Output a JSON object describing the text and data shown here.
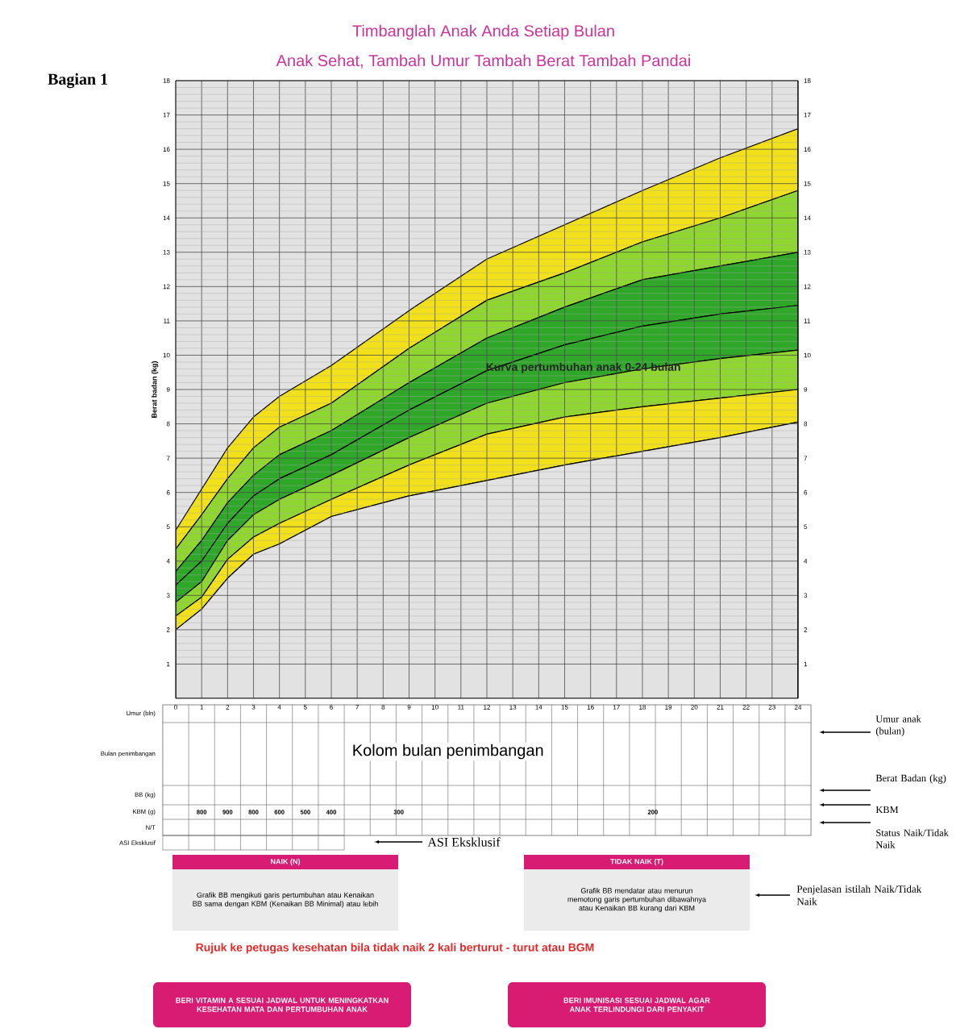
{
  "chart_data": {
    "type": "area",
    "title": "Timbanglah Anak Anda Setiap Bulan",
    "subtitle": "Anak Sehat, Tambah Umur  Tambah Berat  Tambah Pandai",
    "xlabel": "Umur (bln)",
    "ylabel": "Berat badan (kg)",
    "x": [
      0,
      1,
      2,
      3,
      4,
      6,
      9,
      12,
      15,
      18,
      21,
      24
    ],
    "stacked": true,
    "series": [
      {
        "color": "#e2e2e2",
        "values": [
          2.0,
          2.6,
          3.5,
          4.2,
          4.5,
          5.3,
          5.9,
          6.35,
          6.8,
          7.2,
          7.6,
          8.05
        ]
      },
      {
        "color": "#f2e01a",
        "values": [
          0.4,
          0.35,
          0.55,
          0.5,
          0.6,
          0.5,
          0.9,
          1.35,
          1.4,
          1.3,
          1.15,
          0.95
        ]
      },
      {
        "color": "#8fd631",
        "values": [
          0.4,
          0.45,
          0.55,
          0.65,
          0.7,
          0.7,
          0.8,
          0.9,
          1.0,
          1.1,
          1.15,
          1.15
        ]
      },
      {
        "color": "#2fa82a",
        "values": [
          0.5,
          0.6,
          0.5,
          0.55,
          0.6,
          0.6,
          0.8,
          0.95,
          1.1,
          1.25,
          1.3,
          1.3
        ]
      },
      {
        "color": "#2fa82a",
        "values": [
          0.4,
          0.6,
          0.6,
          0.6,
          0.7,
          0.7,
          0.8,
          0.95,
          1.1,
          1.35,
          1.4,
          1.55
        ]
      },
      {
        "color": "#8fd631",
        "values": [
          0.65,
          0.75,
          0.7,
          0.8,
          0.8,
          0.8,
          1.0,
          1.1,
          1.0,
          1.1,
          1.4,
          1.8
        ]
      },
      {
        "color": "#f2e01a",
        "values": [
          0.55,
          0.75,
          0.9,
          0.9,
          0.9,
          1.1,
          1.1,
          1.2,
          1.4,
          1.5,
          1.75,
          1.8
        ]
      }
    ],
    "xlim": [
      0,
      24
    ],
    "xticks": [
      0,
      1,
      2,
      3,
      4,
      5,
      6,
      7,
      8,
      9,
      10,
      11,
      12,
      13,
      14,
      15,
      16,
      17,
      18,
      19,
      20,
      21,
      22,
      23,
      24
    ],
    "ylim": [
      0,
      18
    ],
    "yticks": [
      1,
      2,
      3,
      4,
      5,
      6,
      7,
      8,
      9,
      10,
      11,
      12,
      13,
      14,
      15,
      16,
      17,
      18
    ],
    "y2lim": [
      0,
      18
    ],
    "y2ticks": [
      1,
      2,
      3,
      4,
      5,
      6,
      7,
      8,
      9,
      10,
      11,
      12,
      13,
      14,
      15,
      16,
      17,
      18
    ],
    "grid": true,
    "annotations": [
      "Bagian 1",
      "Kurva pertumbuhan anak 0-24 bulan",
      "Bulan penimbangan",
      "BB (kg)",
      "KBM (g)",
      "N/T",
      "ASI Eksklusif",
      "Kolom bulan penimbangan",
      "Umur anak (bulan)",
      "Berat Badan (kg)",
      "KBM",
      "Status Naik/Tidak Naik",
      "ASI Eksklusif",
      "NAIK (N)",
      "Grafik BB mengikuti garis pertumbuhan atau Kenaikan BB sama dengan KBM (Kenaikan BB Minimal) atau lebih",
      "TIDAK NAIK (T)",
      "Grafik BB mendatar atau menurun memotong garis pertumbuhan dibawahnya atau Kenaikan BB kurang dari KBM",
      "Penjelasan istilah Naik/Tidak Naik",
      "Rujuk ke petugas kesehatan bila tidak naik 2 kali berturut - turut atau BGM",
      "BERI VITAMIN A SESUAI JADWAL UNTUK MENINGKATKAN KESEHATAN MATA DAN PERTUMBUHAN ANAK",
      "BERI IMUNISASI SESUAI JADWAL AGAR ANAK TERLINDUNGI DARI PENYAKIT",
      "800",
      "900",
      "800",
      "600",
      "500",
      "400",
      "300",
      "200"
    ]
  }
}
